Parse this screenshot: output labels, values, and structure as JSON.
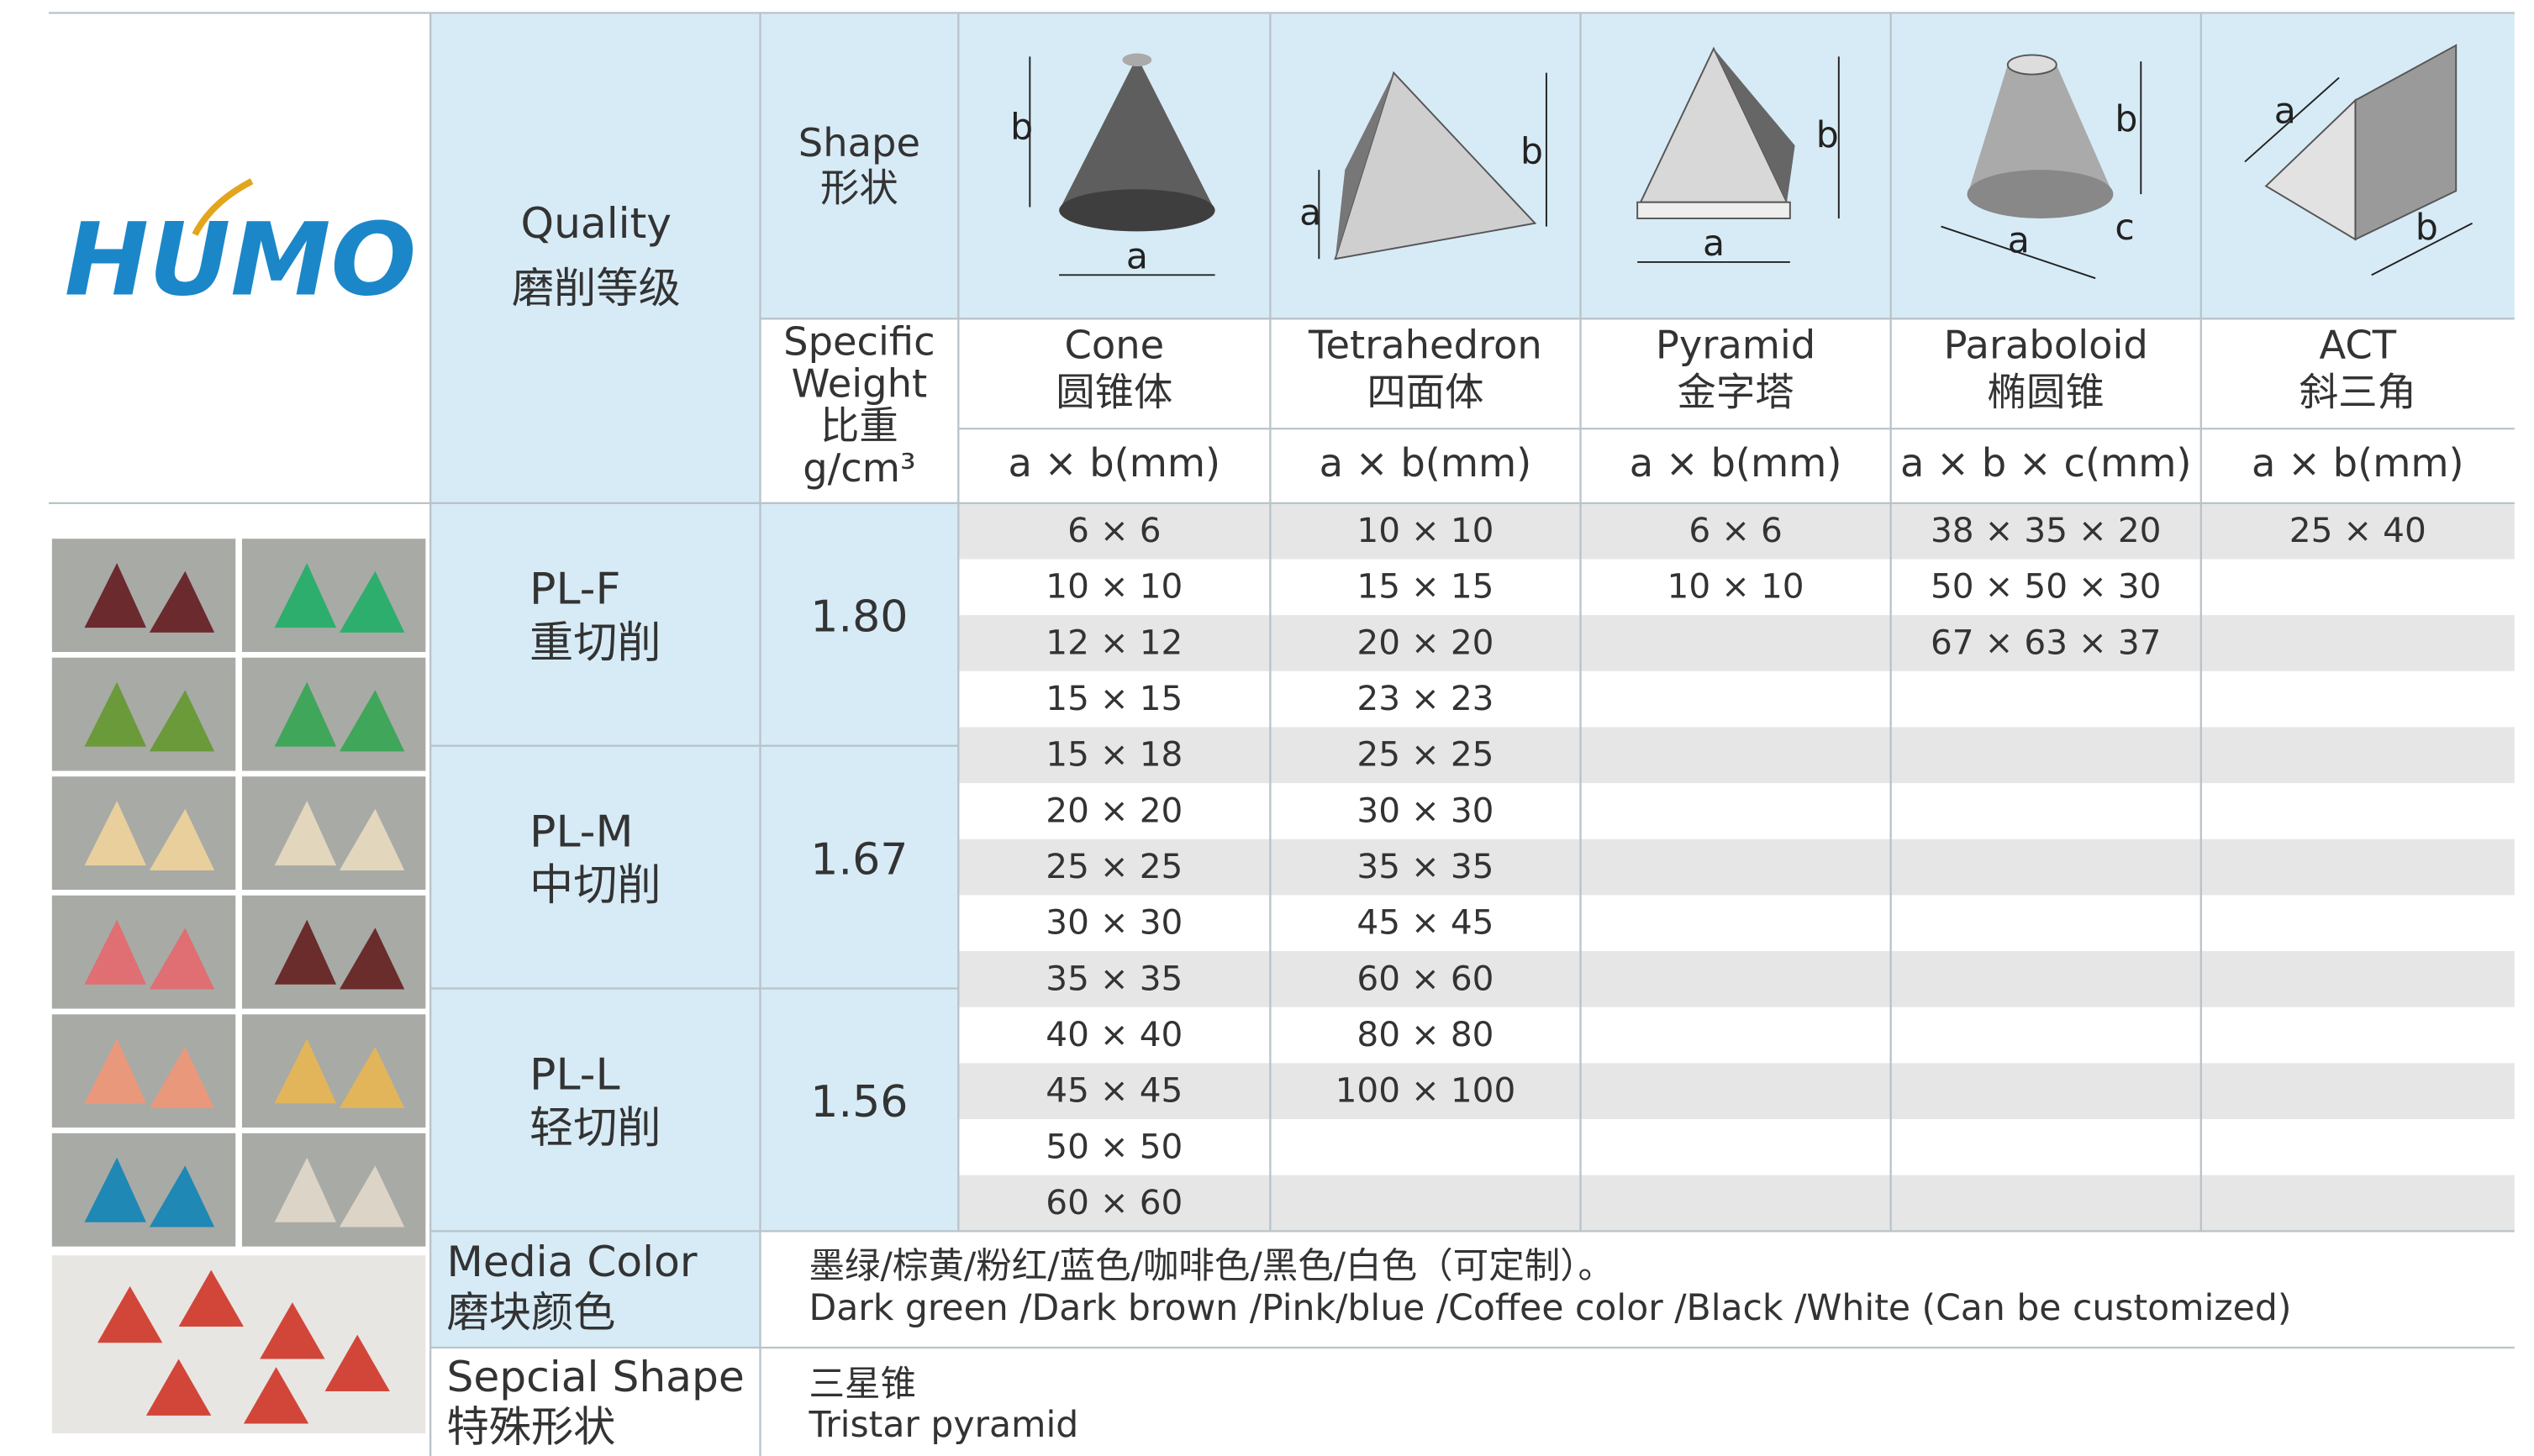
{
  "logo": "HUMO",
  "header": {
    "quality": "Quality",
    "quality_cn": "磨削等级",
    "shape": "Shape",
    "shape_cn": "形状",
    "weight_lines": [
      "Specific",
      "Weight",
      "比重",
      "g/cm³"
    ]
  },
  "shapes": [
    {
      "name": "Cone",
      "name_cn": "圆锥体",
      "unit": "a × b(mm)",
      "dims": [
        "b",
        "a"
      ]
    },
    {
      "name": "Tetrahedron",
      "name_cn": "四面体",
      "unit": "a × b(mm)",
      "dims": [
        "a",
        "b"
      ]
    },
    {
      "name": "Pyramid",
      "name_cn": "金字塔",
      "unit": "a × b(mm)",
      "dims": [
        "b",
        "a"
      ]
    },
    {
      "name": "Paraboloid",
      "name_cn": "椭圆锥",
      "unit": "a × b × c(mm)",
      "dims": [
        "b",
        "a",
        "c"
      ]
    },
    {
      "name": "ACT",
      "name_cn": "斜三角",
      "unit": "a × b(mm)",
      "dims": [
        "a",
        "b"
      ]
    }
  ],
  "grades": [
    {
      "name": "PL-F",
      "name_cn": "重切削",
      "weight": "1.80"
    },
    {
      "name": "PL-M",
      "name_cn": "中切削",
      "weight": "1.67"
    },
    {
      "name": "PL-L",
      "name_cn": "轻切削",
      "weight": "1.56"
    }
  ],
  "sizes": [
    [
      "6 × 6",
      "10 × 10",
      "6 × 6",
      "38 × 35 × 20",
      "25 × 40"
    ],
    [
      "10 × 10",
      "15 × 15",
      "10 × 10",
      "50 × 50 × 30",
      null
    ],
    [
      "12 × 12",
      "20 × 20",
      null,
      "67 × 63 × 37",
      null
    ],
    [
      "15 × 15",
      "23 × 23",
      null,
      null,
      null
    ],
    [
      "15 × 18",
      "25 × 25",
      null,
      null,
      null
    ],
    [
      "20 × 20",
      "30 × 30",
      null,
      null,
      null
    ],
    [
      "25 × 25",
      "35 × 35",
      null,
      null,
      null
    ],
    [
      "30 × 30",
      "45 × 45",
      null,
      null,
      null
    ],
    [
      "35 × 35",
      "60 × 60",
      null,
      null,
      null
    ],
    [
      "40 × 40",
      "80 × 80",
      null,
      null,
      null
    ],
    [
      "45 × 45",
      "100 × 100",
      null,
      null,
      null
    ],
    [
      "50 × 50",
      null,
      null,
      null,
      null
    ],
    [
      "60 × 60",
      null,
      null,
      null,
      null
    ]
  ],
  "media_color": {
    "label": "Media Color",
    "label_cn": "磨块颜色",
    "text_cn": "墨绿/棕黄/粉红/蓝色/咖啡色/黑色/白色（可定制）。",
    "text_en": "Dark green /Dark brown /Pink/blue /Coffee color /Black /White (Can be customized)"
  },
  "special_shape": {
    "label": "Sepcial Shape",
    "label_cn": "特殊形状",
    "text_cn": "三星锥",
    "text_en": "Tristar pyramid"
  }
}
